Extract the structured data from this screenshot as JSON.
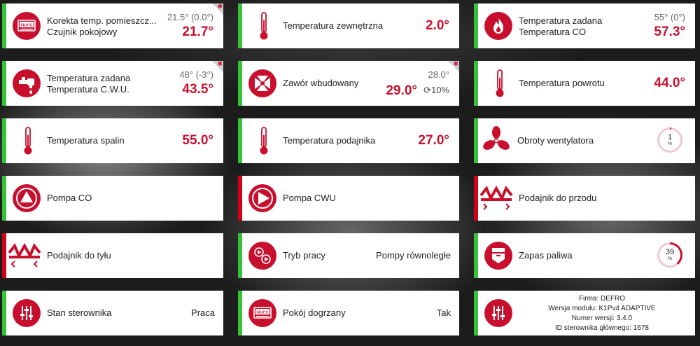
{
  "colors": {
    "accent": "#c8102e",
    "status_on": "#36c236",
    "status_off": "#d0021b"
  },
  "tiles": {
    "room_correction": {
      "label1": "Korekta temp. pomieszcz...",
      "label2": "Czujnik pokojowy",
      "setpoint": "21.5° (0.0°)",
      "value": "21.7°",
      "icon": "room-thermostat-icon",
      "icon_text": "58.0°C"
    },
    "outdoor_temp": {
      "label": "Temperatura zewnętrzna",
      "value": "2.0°",
      "icon": "thermometer-icon"
    },
    "co_temp": {
      "label1": "Temperatura zadana",
      "label2": "Temperatura CO",
      "setpoint": "55° (0°)",
      "value": "57.3°",
      "icon": "flame-icon"
    },
    "cwu_temp": {
      "label1": "Temperatura zadana",
      "label2": "Temperatura C.W.U.",
      "setpoint": "48° (-3°)",
      "value": "43.5°",
      "icon": "tap-icon"
    },
    "valve": {
      "label": "Zawór wbudowany",
      "setpoint": "28.0°",
      "value": "29.0°",
      "opening": "10%",
      "icon": "valve-icon"
    },
    "return_temp": {
      "label": "Temperatura powrotu",
      "value": "44.0°",
      "icon": "thermometer-icon"
    },
    "flue_temp": {
      "label": "Temperatura spalin",
      "value": "55.0°",
      "icon": "thermometer-icon"
    },
    "feeder_temp": {
      "label": "Temperatura podajnika",
      "value": "27.0°",
      "icon": "thermometer-icon"
    },
    "fan": {
      "label": "Obroty wentylatora",
      "value": "1",
      "unit": "%",
      "fraction": 0.01,
      "icon": "fan-icon"
    },
    "pump_co": {
      "label": "Pompa CO",
      "icon": "pump-icon"
    },
    "pump_cwu": {
      "label": "Pompa CWU",
      "icon": "pump-icon"
    },
    "feeder_forward": {
      "label": "Podajnik do przodu",
      "icon": "feeder-icon"
    },
    "feeder_back": {
      "label": "Podajnik do tyłu",
      "icon": "feeder-icon"
    },
    "work_mode": {
      "label": "Tryb pracy",
      "value": "Pompy równoległe",
      "icon": "pumps-mode-icon"
    },
    "fuel": {
      "label": "Zapas paliwa",
      "value": "39",
      "unit": "%",
      "fraction": 0.39,
      "icon": "hopper-icon"
    },
    "controller_state": {
      "label": "Stan sterownika",
      "value": "Praca",
      "icon": "sliders-icon"
    },
    "room_heated": {
      "label": "Pokój dogrzany",
      "value": "Tak",
      "icon": "room-thermostat-icon",
      "icon_text": "58.0°C"
    },
    "info": {
      "line1": "Firma: DEFRO",
      "line2": "Wersja modułu: K1Pv4 ADAPTIVE",
      "line3": "Numer wersji: 3.4.0",
      "line4": "ID sterownika głównego: 1678",
      "icon": "sliders-icon"
    }
  }
}
